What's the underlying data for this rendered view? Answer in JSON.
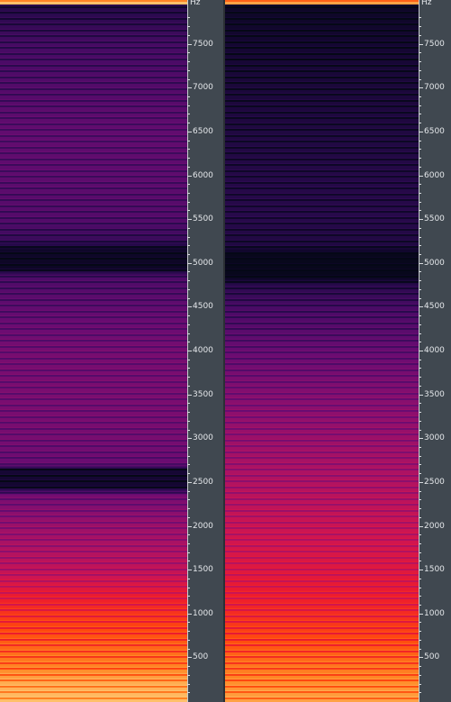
{
  "axis_unit": "Hz",
  "axis_labels": [
    "7500",
    "7000",
    "6500",
    "6000",
    "5500",
    "5000",
    "4500",
    "4000",
    "3500",
    "3000",
    "2500",
    "2000",
    "1500",
    "1000",
    "500"
  ],
  "axis_max_hz": 7950,
  "colors": {
    "background": "#3c434a",
    "axis_panel": "#404850",
    "colormap": [
      "#050816",
      "#140732",
      "#2a0a4e",
      "#4a0b66",
      "#6a0c72",
      "#8a0f6e",
      "#ad1263",
      "#d01550",
      "#ee1c2d",
      "#ff4a0e",
      "#ff8a26",
      "#ffc06a"
    ]
  },
  "channels": [
    {
      "name": "left",
      "bands": [
        {
          "hz": 7950,
          "level": 0.16
        },
        {
          "hz": 7500,
          "level": 0.26
        },
        {
          "hz": 7000,
          "level": 0.3
        },
        {
          "hz": 6500,
          "level": 0.34
        },
        {
          "hz": 6000,
          "level": 0.33
        },
        {
          "hz": 5500,
          "level": 0.3
        },
        {
          "hz": 5250,
          "level": 0.22
        },
        {
          "hz": 5150,
          "level": 0.06
        },
        {
          "hz": 4950,
          "level": 0.05
        },
        {
          "hz": 4850,
          "level": 0.28
        },
        {
          "hz": 4500,
          "level": 0.34
        },
        {
          "hz": 4000,
          "level": 0.4
        },
        {
          "hz": 3500,
          "level": 0.41
        },
        {
          "hz": 3000,
          "level": 0.4
        },
        {
          "hz": 2700,
          "level": 0.36
        },
        {
          "hz": 2650,
          "level": 0.1
        },
        {
          "hz": 2450,
          "level": 0.09
        },
        {
          "hz": 2350,
          "level": 0.4
        },
        {
          "hz": 2000,
          "level": 0.5
        },
        {
          "hz": 1500,
          "level": 0.6
        },
        {
          "hz": 1200,
          "level": 0.72
        },
        {
          "hz": 1000,
          "level": 0.78
        },
        {
          "hz": 700,
          "level": 0.84
        },
        {
          "hz": 400,
          "level": 0.9
        },
        {
          "hz": 200,
          "level": 0.97
        },
        {
          "hz": 0,
          "level": 1.0
        }
      ]
    },
    {
      "name": "right",
      "bands": [
        {
          "hz": 7950,
          "level": 0.05
        },
        {
          "hz": 7500,
          "level": 0.09
        },
        {
          "hz": 7000,
          "level": 0.12
        },
        {
          "hz": 6500,
          "level": 0.14
        },
        {
          "hz": 6000,
          "level": 0.16
        },
        {
          "hz": 5500,
          "level": 0.17
        },
        {
          "hz": 5200,
          "level": 0.14
        },
        {
          "hz": 5100,
          "level": 0.02
        },
        {
          "hz": 4850,
          "level": 0.02
        },
        {
          "hz": 4750,
          "level": 0.18
        },
        {
          "hz": 4500,
          "level": 0.27
        },
        {
          "hz": 4000,
          "level": 0.36
        },
        {
          "hz": 3500,
          "level": 0.44
        },
        {
          "hz": 3000,
          "level": 0.5
        },
        {
          "hz": 2500,
          "level": 0.56
        },
        {
          "hz": 2000,
          "level": 0.62
        },
        {
          "hz": 1500,
          "level": 0.68
        },
        {
          "hz": 1000,
          "level": 0.76
        },
        {
          "hz": 700,
          "level": 0.82
        },
        {
          "hz": 400,
          "level": 0.88
        },
        {
          "hz": 150,
          "level": 0.93
        },
        {
          "hz": 0,
          "level": 0.95
        }
      ]
    }
  ]
}
